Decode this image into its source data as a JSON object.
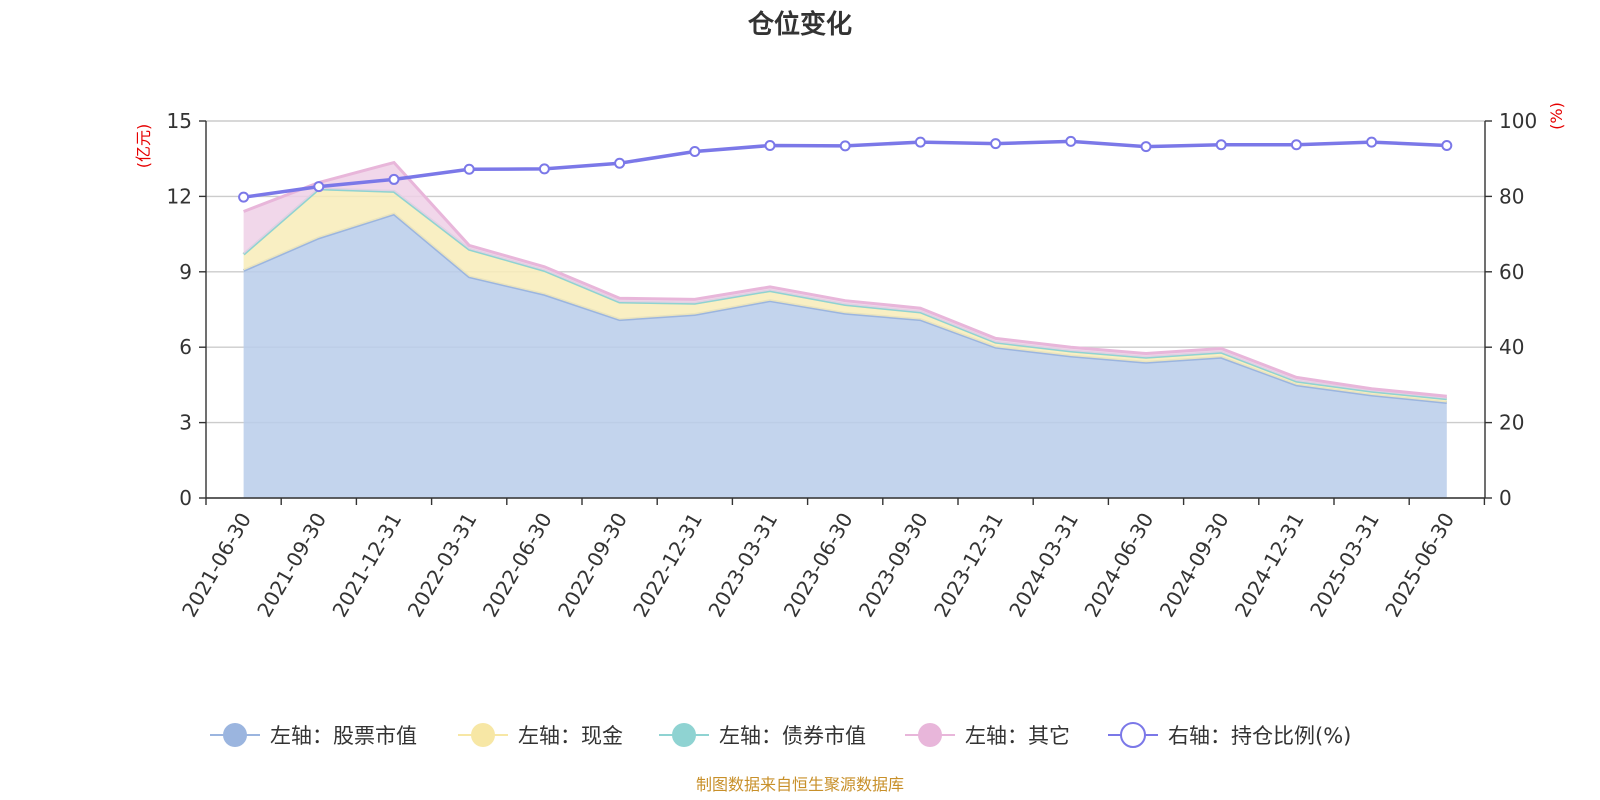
{
  "chart_data": {
    "type": "area",
    "title": "仓位变化",
    "source_note": "制图数据来自恒生聚源数据库",
    "left_axis": {
      "unit": "(亿元)",
      "ylim": [
        0,
        15
      ],
      "ticks": [
        "0",
        "3",
        "6",
        "9",
        "12",
        "15"
      ]
    },
    "right_axis": {
      "unit": "(%)",
      "ylim": [
        0,
        100
      ],
      "ticks": [
        "0",
        "20",
        "40",
        "60",
        "80",
        "100"
      ]
    },
    "grid": true,
    "legend_position": "bottom",
    "categories": [
      "2021-06-30",
      "2021-09-30",
      "2021-12-31",
      "2022-03-31",
      "2022-06-30",
      "2022-09-30",
      "2022-12-31",
      "2023-03-31",
      "2023-06-30",
      "2023-09-30",
      "2023-12-31",
      "2024-03-31",
      "2024-06-30",
      "2024-09-30",
      "2024-12-31",
      "2025-03-31",
      "2025-06-30"
    ],
    "series": [
      {
        "name": "左轴：股票市值",
        "axis": "left",
        "stack": true,
        "color": "#9bb5df",
        "fill": "#b8cdea",
        "values": [
          9.05,
          10.35,
          11.3,
          8.8,
          8.1,
          7.1,
          7.3,
          7.85,
          7.35,
          7.1,
          6.0,
          5.65,
          5.4,
          5.6,
          4.5,
          4.1,
          3.8
        ]
      },
      {
        "name": "左轴：现金",
        "axis": "left",
        "stack": true,
        "color": "#f7e7a5",
        "fill": "#f8ecb8",
        "values": [
          0.65,
          1.95,
          0.9,
          1.1,
          0.95,
          0.7,
          0.45,
          0.4,
          0.35,
          0.3,
          0.2,
          0.2,
          0.2,
          0.2,
          0.15,
          0.15,
          0.15
        ]
      },
      {
        "name": "左轴：债券市值",
        "axis": "left",
        "stack": true,
        "color": "#8fd3d2",
        "fill": "#aadedd",
        "values": [
          0,
          0,
          0,
          0,
          0,
          0,
          0,
          0,
          0,
          0,
          0,
          0,
          0,
          0,
          0,
          0,
          0
        ]
      },
      {
        "name": "左轴：其它",
        "axis": "left",
        "stack": true,
        "color": "#e8b6da",
        "fill": "#eed0e6",
        "values": [
          1.7,
          0.25,
          1.15,
          0.15,
          0.15,
          0.15,
          0.15,
          0.15,
          0.15,
          0.15,
          0.15,
          0.15,
          0.15,
          0.15,
          0.15,
          0.1,
          0.1
        ]
      },
      {
        "name": "右轴：持仓比例(%)",
        "axis": "right",
        "type": "line",
        "color": "#7b78e8",
        "values": [
          79.8,
          82.6,
          84.5,
          87.2,
          87.3,
          88.8,
          91.9,
          93.5,
          93.4,
          94.4,
          94.0,
          94.6,
          93.2,
          93.7,
          93.7,
          94.4,
          93.5
        ]
      }
    ]
  }
}
